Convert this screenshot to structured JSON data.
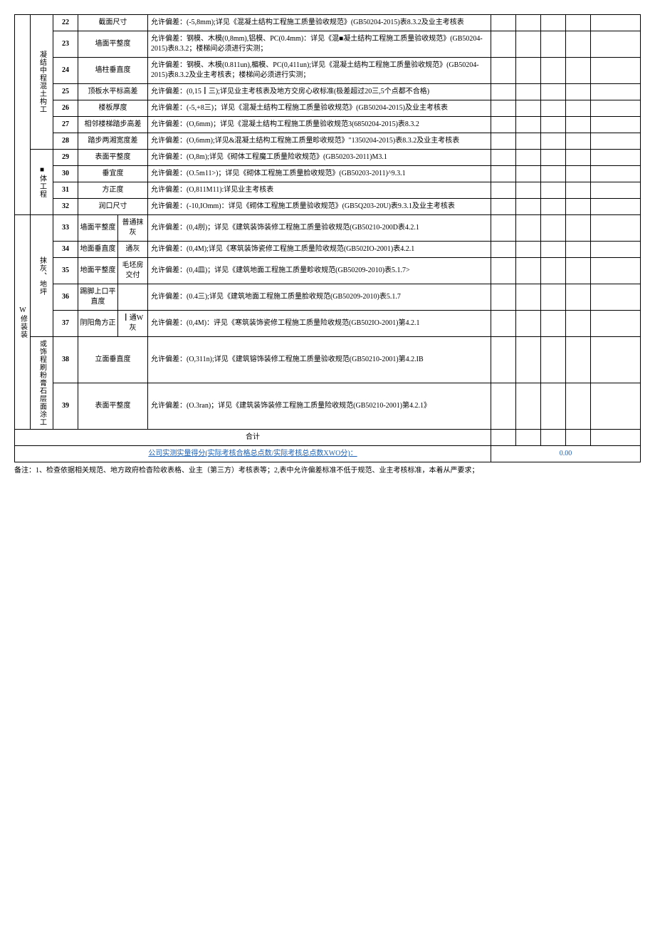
{
  "categories": {
    "cat1_label": "凝结中程混土构工",
    "cat2_label": "■体工程",
    "cat3_label": "W修装装",
    "cat3a_label": "抹灰、地坪",
    "cat3b_label": "或饰程刷粉膏石层面涂工"
  },
  "rows": [
    {
      "num": "22",
      "item": "截面尺寸",
      "sub": "",
      "desc": "允许偏差：(-5,8mm);详见《混凝土结构工程施工质量验收规范》(GB50204-2015)表8.3.2及业主考核表"
    },
    {
      "num": "23",
      "item": "墙面平整度",
      "sub": "",
      "desc": "允许偏差：钢模、木模(0,8mm),铝模、PC(0.4mm)：详见《混■凝土结构工程施工质量验收规范》(GB50204-2015)表8.3.2；楼梯间必须进行实测；"
    },
    {
      "num": "24",
      "item": "墙柱垂直度",
      "sub": "",
      "desc": "允许偏差：钢模、木模(0.811un),楣模、PC(0,411un);详见《混凝土结构工程施工质量验收规范》(GB50204-2015)表8.3.2及业主考核表；楼梯间必须进行实测；"
    },
    {
      "num": "25",
      "item": "顶板水平标高差",
      "sub": "",
      "desc": "允许偏差：(0,15┃三);详见业主考核表及地方交房心收标准(极差超过20三,5个点都不合格)"
    },
    {
      "num": "26",
      "item": "楼板厚度",
      "sub": "",
      "desc": "允许偏差：(-5,+8三)；详见《混凝土结构工程施工质量验收规范》(GB50204-2015)及业主考核表"
    },
    {
      "num": "27",
      "item": "相邻楼梯踏步高差",
      "sub": "",
      "desc": "允许偏差：(O,6mm)；详见《混凝土结构工程施工质量验收规范3(6850204-2015)表8.3.2"
    },
    {
      "num": "28",
      "item": "踏步两湘宽度差",
      "sub": "",
      "desc": "允许偏差：(O,6mm);详见&混凝土结构工程施工质量畛收规范》\"1350204-2015)表8.3.2及业主考核表"
    },
    {
      "num": "29",
      "item": "表面平整度",
      "sub": "",
      "desc": "允许偏差：(O,8m);详见《砌体工程魔工质量险收规范》(GB50203-2011)M3.1"
    },
    {
      "num": "30",
      "item": "垂宜度",
      "sub": "",
      "desc": "允许偏差：(O.5m11>)；详见《砌体工程施工质量脸收规范》(GB50203-2011)^9.3.1"
    },
    {
      "num": "31",
      "item": "方正度",
      "sub": "",
      "desc": "允许偏差：(O,811M11):详见业主考核表"
    },
    {
      "num": "32",
      "item": "润口尺寸",
      "sub": "",
      "desc": "允许偏差：(-10,IOmm)：详见《砌体工程施工质量验收规范》(GB5Q203-20U)表9.3.1及业主考核表"
    },
    {
      "num": "33",
      "item": "墙面平整度",
      "sub": "普通抹灰",
      "desc": "允许偏差：(0,4刖)；详见《建筑装饰装修工程施工质量验收规范(GB50210-200D表4.2.1"
    },
    {
      "num": "34",
      "item": "地面垂直度",
      "sub": "通灰",
      "desc": "允许偏差：(0,4M);详见《寒筑装饰瓷修工程施工质量险收规范(GB502IO-2001)表4.2.1"
    },
    {
      "num": "35",
      "item": "地面平整度",
      "sub": "毛坯房交付",
      "desc": "允许偏差：(0,4皿)；详见《建筑地面工程施工质量畛收规范(GB50209-2010)表5.1.7>"
    },
    {
      "num": "36",
      "item": "踢脚上口平直度",
      "sub": "",
      "desc": "允许偏差：(0.4三);详见《建筑地面工程施工质量脸收规范(GB50209-2010)表5.1.7"
    },
    {
      "num": "37",
      "item": "阴阳角方正",
      "sub": "┃通W灰",
      "desc": "允许偏差：(0,4M)：评见《寒筑装饰瓷修工程施工质量险收规范(GB502IO-2001)第4.2.1"
    },
    {
      "num": "38",
      "item": "立面垂直度",
      "sub": "",
      "desc": "允许偏差：(O,311n);详见《建筑镕饰装修工程施工质量验收规范(GB50210-2001)第4.2.IB"
    },
    {
      "num": "39",
      "item": "表面平整度",
      "sub": "",
      "desc": "允许偏差：(O.3ran)；详见《建筑装饰装修工程施工质量险收规范(GB50210-2001)第4.2.1》"
    }
  ],
  "summary": {
    "total_label": "合计",
    "score_label": "公司实测实量得分(实际考核合格总点数/实际考核总点数XWO分)：",
    "score_value": "0.00"
  },
  "footnote": "备注：1、检查依据相关规范、地方政府检杳险收表格、业主（第三方）考核表等；2,表中允许偏差标准不低于规范、业主考核标准，本着从严要求；"
}
